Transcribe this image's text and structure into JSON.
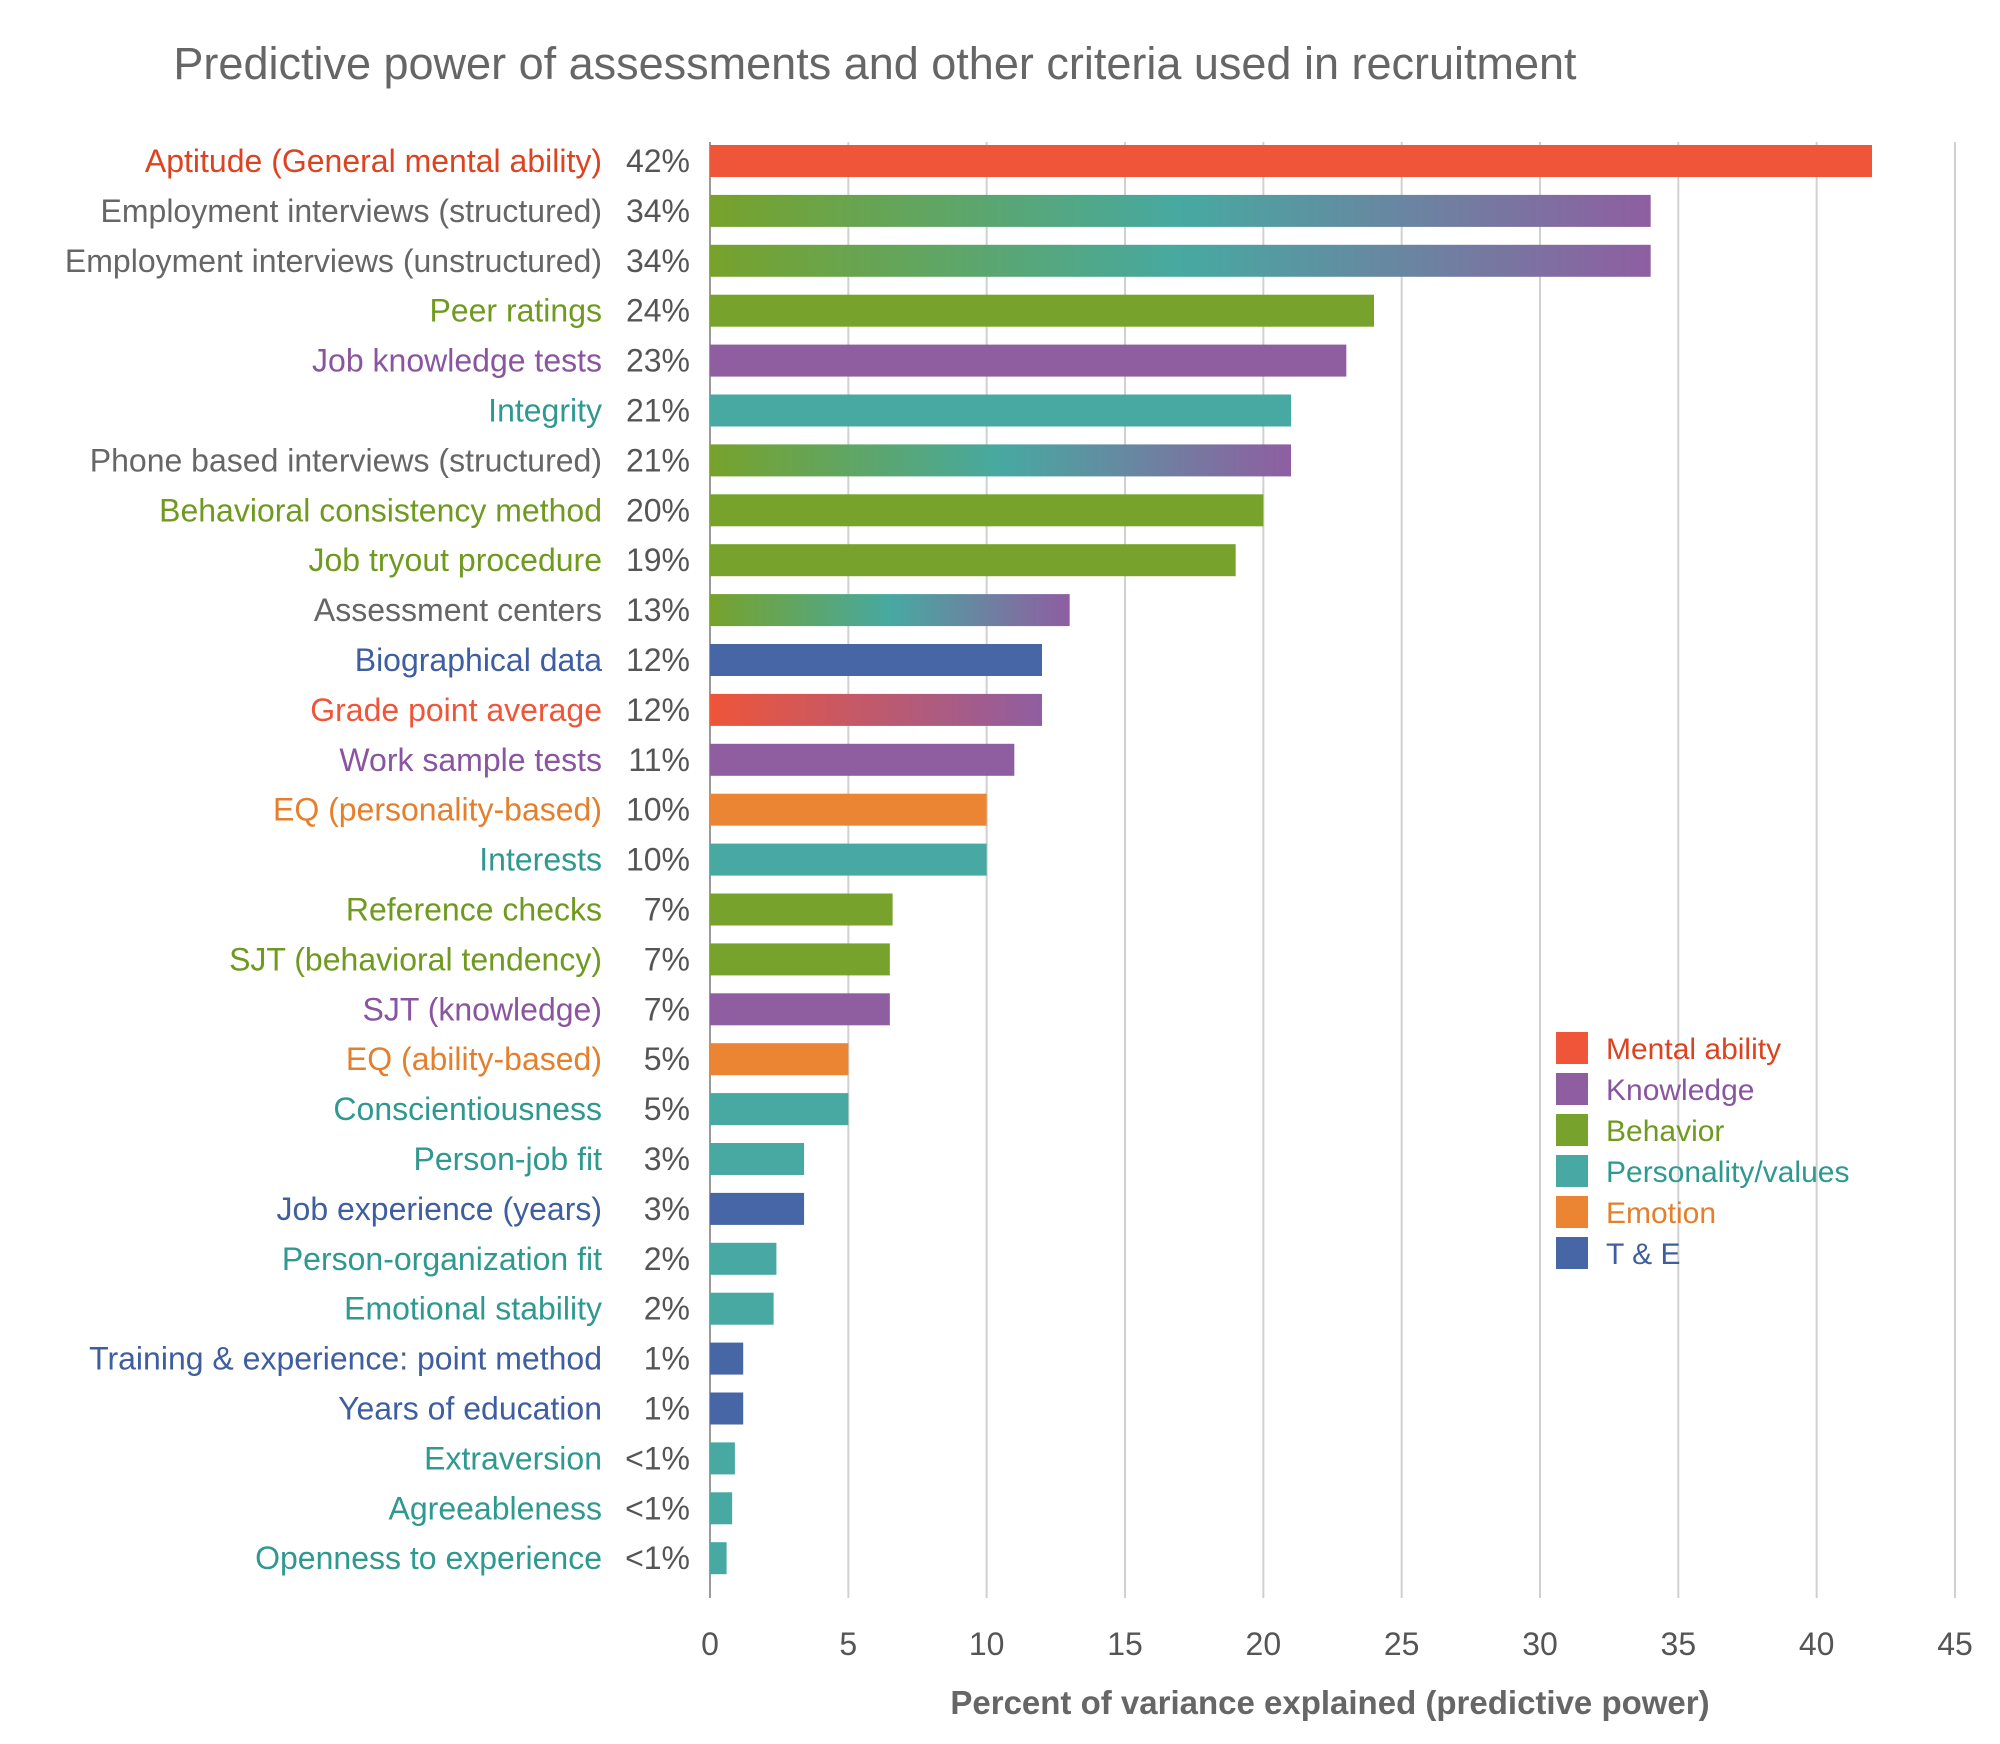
{
  "chart_data": {
    "type": "bar",
    "orientation": "horizontal",
    "title": "Predictive power of assessments and other criteria used in recruitment",
    "xlabel": "Percent of variance explained (predictive power)",
    "ylabel": "",
    "xlim": [
      0,
      45
    ],
    "xticks": [
      "0",
      "5",
      "10",
      "15",
      "20",
      "25",
      "30",
      "35",
      "40",
      "45"
    ],
    "grid": "vertical",
    "legend_position": "right",
    "legend": [
      {
        "name": "Mental ability",
        "color": "#ee5539"
      },
      {
        "name": "Knowledge",
        "color": "#8f5ea1"
      },
      {
        "name": "Behavior",
        "color": "#77a22b"
      },
      {
        "name": "Personality/values",
        "color": "#47a9a1"
      },
      {
        "name": "Emotion",
        "color": "#eb8533"
      },
      {
        "name": "T & E",
        "color": "#4766a6"
      }
    ],
    "bars": [
      {
        "label": "Aptitude (General mental ability)",
        "value": 42,
        "value_label": "42%",
        "categories": [
          "Mental ability"
        ]
      },
      {
        "label": "Employment interviews (structured)",
        "value": 34,
        "value_label": "34%",
        "categories": [
          "Behavior",
          "Personality/values",
          "Knowledge"
        ]
      },
      {
        "label": "Employment interviews (unstructured)",
        "value": 34,
        "value_label": "34%",
        "categories": [
          "Behavior",
          "Personality/values",
          "Knowledge"
        ]
      },
      {
        "label": "Peer ratings",
        "value": 24,
        "value_label": "24%",
        "categories": [
          "Behavior"
        ]
      },
      {
        "label": "Job knowledge tests",
        "value": 23,
        "value_label": "23%",
        "categories": [
          "Knowledge"
        ]
      },
      {
        "label": "Integrity",
        "value": 21,
        "value_label": "21%",
        "categories": [
          "Personality/values"
        ]
      },
      {
        "label": "Phone based interviews (structured)",
        "value": 21,
        "value_label": "21%",
        "categories": [
          "Behavior",
          "Personality/values",
          "Knowledge"
        ]
      },
      {
        "label": "Behavioral consistency method",
        "value": 20,
        "value_label": "20%",
        "categories": [
          "Behavior"
        ]
      },
      {
        "label": "Job tryout procedure",
        "value": 19,
        "value_label": "19%",
        "categories": [
          "Behavior"
        ]
      },
      {
        "label": "Assessment centers",
        "value": 13,
        "value_label": "13%",
        "categories": [
          "Behavior",
          "Personality/values",
          "Knowledge"
        ]
      },
      {
        "label": "Biographical data",
        "value": 12,
        "value_label": "12%",
        "categories": [
          "T & E"
        ]
      },
      {
        "label": "Grade point average",
        "value": 12,
        "value_label": "12%",
        "categories": [
          "Mental ability",
          "Knowledge"
        ]
      },
      {
        "label": "Work sample tests",
        "value": 11,
        "value_label": "11%",
        "categories": [
          "Knowledge"
        ]
      },
      {
        "label": "EQ (personality-based)",
        "value": 10,
        "value_label": "10%",
        "categories": [
          "Emotion"
        ]
      },
      {
        "label": "Interests",
        "value": 10,
        "value_label": "10%",
        "categories": [
          "Personality/values"
        ]
      },
      {
        "label": "Reference checks",
        "value": 6.6,
        "value_label": "7%",
        "categories": [
          "Behavior"
        ]
      },
      {
        "label": "SJT (behavioral tendency)",
        "value": 6.5,
        "value_label": "7%",
        "categories": [
          "Behavior"
        ]
      },
      {
        "label": "SJT (knowledge)",
        "value": 6.5,
        "value_label": "7%",
        "categories": [
          "Knowledge"
        ]
      },
      {
        "label": "EQ (ability-based)",
        "value": 5,
        "value_label": "5%",
        "categories": [
          "Emotion"
        ]
      },
      {
        "label": "Conscientiousness",
        "value": 5,
        "value_label": "5%",
        "categories": [
          "Personality/values"
        ]
      },
      {
        "label": "Person-job fit",
        "value": 3.4,
        "value_label": "3%",
        "categories": [
          "Personality/values"
        ]
      },
      {
        "label": "Job experience (years)",
        "value": 3.4,
        "value_label": "3%",
        "categories": [
          "T & E"
        ]
      },
      {
        "label": "Person-organization fit",
        "value": 2.4,
        "value_label": "2%",
        "categories": [
          "Personality/values"
        ]
      },
      {
        "label": "Emotional stability",
        "value": 2.3,
        "value_label": "2%",
        "categories": [
          "Personality/values"
        ]
      },
      {
        "label": "Training & experience: point method",
        "value": 1.2,
        "value_label": "1%",
        "categories": [
          "T & E"
        ]
      },
      {
        "label": "Years of education",
        "value": 1.2,
        "value_label": "1%",
        "categories": [
          "T & E"
        ]
      },
      {
        "label": "Extraversion",
        "value": 0.9,
        "value_label": "<1%",
        "categories": [
          "Personality/values"
        ]
      },
      {
        "label": "Agreeableness",
        "value": 0.8,
        "value_label": "<1%",
        "categories": [
          "Personality/values"
        ]
      },
      {
        "label": "Openness to experience",
        "value": 0.6,
        "value_label": "<1%",
        "categories": [
          "Personality/values"
        ]
      }
    ]
  }
}
